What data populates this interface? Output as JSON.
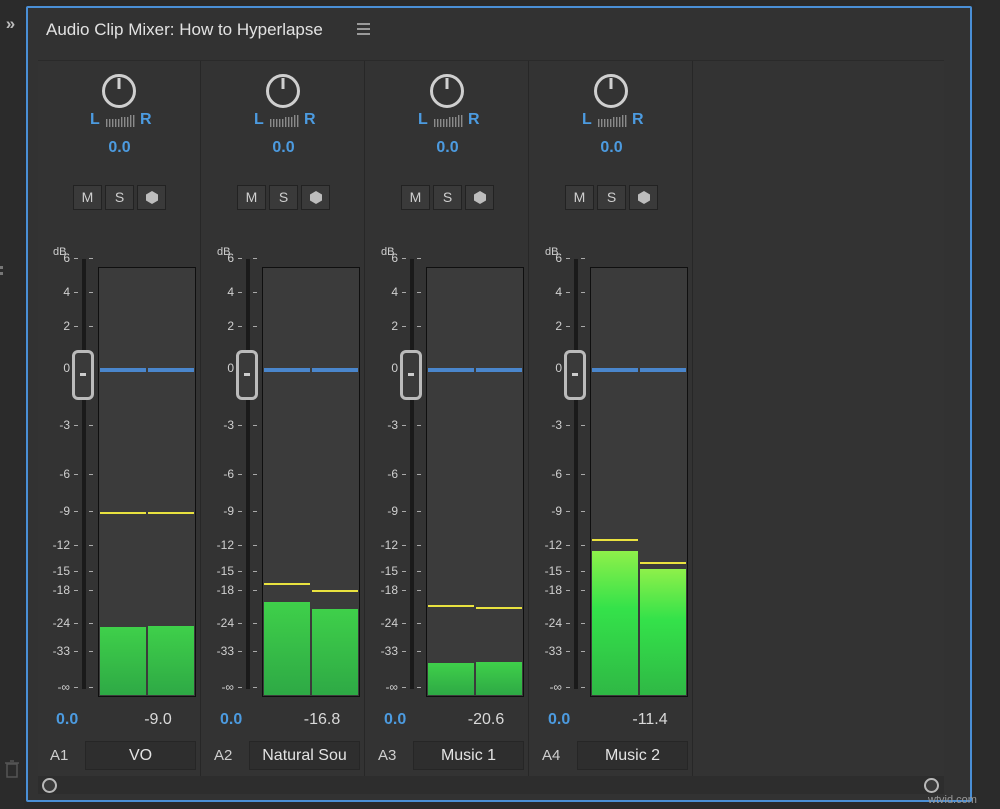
{
  "sidebar": {
    "expand_icon": "chevron-double-right-icon",
    "trash_icon": "trash-icon",
    "expand_label": "»"
  },
  "panel": {
    "title": "Audio Clip Mixer: How to Hyperlapse",
    "menu_icon": "hamburger-menu-icon"
  },
  "scale": {
    "unit": "dB",
    "ticks": [
      "6",
      "4",
      "2",
      "0",
      "-3",
      "-6",
      "-9",
      "-12",
      "-15",
      "-18",
      "-24",
      "-33",
      "-∞"
    ]
  },
  "colors": {
    "accent_blue": "#4c9be0",
    "meter_green": "#3fd04a",
    "peak_yellow": "#e9e23f",
    "panel_border": "#4a8fd6"
  },
  "channels": [
    {
      "track_id": "A1",
      "name": "VO",
      "pan_left": "L",
      "pan_right": "R",
      "pan_value": "0.0",
      "mute": "M",
      "solo": "S",
      "gain": "0.0",
      "level": "-9.0",
      "meter_db": [
        -24.5,
        -24.2
      ],
      "peak_db": [
        -9.0,
        -9.0
      ]
    },
    {
      "track_id": "A2",
      "name": "Natural Sou",
      "pan_left": "L",
      "pan_right": "R",
      "pan_value": "0.0",
      "mute": "M",
      "solo": "S",
      "gain": "0.0",
      "level": "-16.8",
      "meter_db": [
        -19.8,
        -21.0
      ],
      "peak_db": [
        -16.8,
        -17.8
      ]
    },
    {
      "track_id": "A3",
      "name": "Music 1",
      "pan_left": "L",
      "pan_right": "R",
      "pan_value": "0.0",
      "mute": "M",
      "solo": "S",
      "gain": "0.0",
      "level": "-20.6",
      "meter_db": [
        -40.5,
        -40.0
      ],
      "peak_db": [
        -20.6,
        -20.9
      ]
    },
    {
      "track_id": "A4",
      "name": "Music 2",
      "pan_left": "L",
      "pan_right": "R",
      "pan_value": "0.0",
      "mute": "M",
      "solo": "S",
      "gain": "0.0",
      "level": "-11.4",
      "meter_db": [
        -12.5,
        -14.5
      ],
      "peak_db": [
        -11.4,
        -13.9
      ]
    }
  ],
  "watermark": "wtvid.com"
}
